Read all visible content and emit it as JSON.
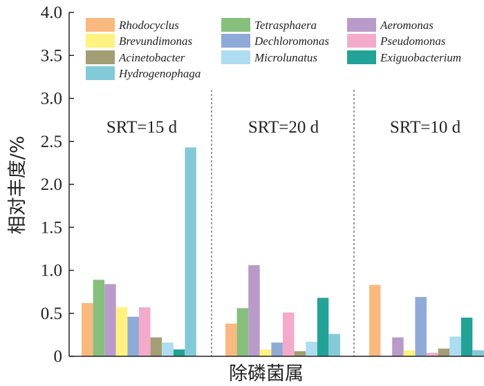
{
  "chart_data": {
    "type": "bar",
    "title": "",
    "xlabel": "除磷菌属",
    "ylabel": "相对丰度/%",
    "ylim": [
      0,
      4.0
    ],
    "yticks": [
      "0",
      "0.5",
      "1.0",
      "1.5",
      "2.0",
      "2.5",
      "3.0",
      "3.5",
      "4.0"
    ],
    "grid": false,
    "legend_position": "top",
    "categories": [
      "SRT=15 d",
      "SRT=20 d",
      "SRT=10 d"
    ],
    "series": [
      {
        "name": "Rhodocyclus",
        "color": "#f9b97f",
        "values": [
          0.62,
          0.38,
          0.83
        ]
      },
      {
        "name": "Tetrasphaera",
        "color": "#86c07c",
        "values": [
          0.89,
          0.56,
          0.0
        ]
      },
      {
        "name": "Aeromonas",
        "color": "#b99bc9",
        "values": [
          0.84,
          1.06,
          0.22
        ]
      },
      {
        "name": "Brevundimonas",
        "color": "#fff27f",
        "values": [
          0.57,
          0.08,
          0.07
        ]
      },
      {
        "name": "Dechloromonas",
        "color": "#8faad6",
        "values": [
          0.46,
          0.16,
          0.69
        ]
      },
      {
        "name": "Pseudomonas",
        "color": "#f4abcb",
        "values": [
          0.57,
          0.51,
          0.04
        ]
      },
      {
        "name": "Acinetobacter",
        "color": "#a39e74",
        "values": [
          0.22,
          0.06,
          0.09
        ]
      },
      {
        "name": "Microlunatus",
        "color": "#aedcf1",
        "values": [
          0.16,
          0.17,
          0.23
        ]
      },
      {
        "name": "Exiguobacterium",
        "color": "#23a397",
        "values": [
          0.08,
          0.68,
          0.45
        ]
      },
      {
        "name": "Hydrogenophaga",
        "color": "#83cad9",
        "values": [
          2.43,
          0.26,
          0.07
        ]
      }
    ]
  }
}
